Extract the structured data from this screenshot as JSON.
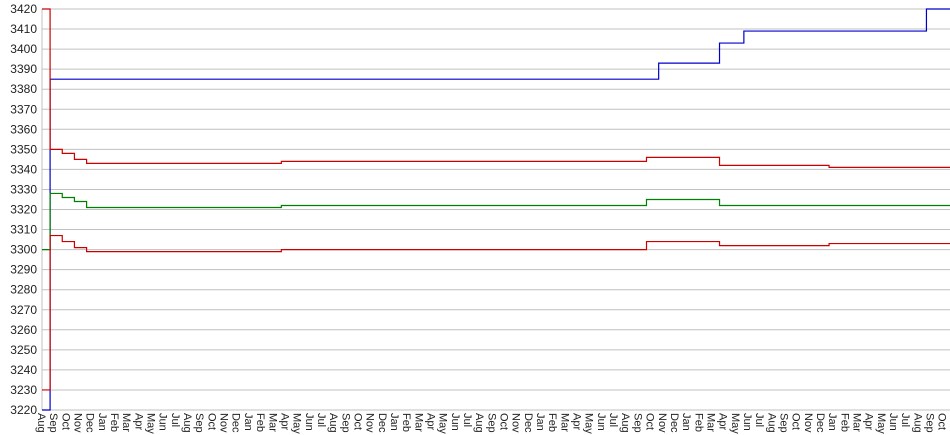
{
  "chart_data": {
    "type": "line",
    "title": "",
    "xlabel": "",
    "ylabel": "",
    "ylim": [
      3220,
      3420
    ],
    "yticks": [
      3220,
      3230,
      3240,
      3250,
      3260,
      3270,
      3280,
      3290,
      3300,
      3310,
      3320,
      3330,
      3340,
      3350,
      3360,
      3370,
      3380,
      3390,
      3400,
      3410,
      3420
    ],
    "grid": "horizontal",
    "legend": "none",
    "categories": [
      "Aug",
      "Sep",
      "Oct",
      "Nov",
      "Dec",
      "Jan",
      "Feb",
      "Mar",
      "Apr",
      "May",
      "Jun",
      "Jul",
      "Aug",
      "Sep",
      "Oct",
      "Nov",
      "Dec",
      "Jan",
      "Feb",
      "Mar",
      "Apr",
      "May",
      "Jun",
      "Jul",
      "Aug",
      "Sep",
      "Oct",
      "Nov",
      "Dec",
      "Jan",
      "Feb",
      "Mar",
      "Apr",
      "May",
      "Jun",
      "Jul",
      "Aug",
      "Sep",
      "Oct",
      "Nov",
      "Dec",
      "Jan",
      "Feb",
      "Mar",
      "Apr",
      "May",
      "Jun",
      "Jul",
      "Aug",
      "Sep",
      "Oct",
      "Nov",
      "Dec",
      "Jan",
      "Feb",
      "Mar",
      "Apr",
      "May",
      "Jun",
      "Jul",
      "Aug",
      "Sep",
      "Oct",
      "Nov",
      "Dec",
      "Jan",
      "Feb",
      "Mar",
      "Apr",
      "May",
      "Jun",
      "Jul",
      "Aug",
      "Sep",
      "Oct"
    ],
    "series": [
      {
        "color": "#0000cc",
        "values": [
          3220,
          3385,
          3385,
          3385,
          3385,
          3385,
          3385,
          3385,
          3385,
          3385,
          3385,
          3385,
          3385,
          3385,
          3385,
          3385,
          3385,
          3385,
          3385,
          3385,
          3385,
          3385,
          3385,
          3385,
          3385,
          3385,
          3385,
          3385,
          3385,
          3385,
          3385,
          3385,
          3385,
          3385,
          3385,
          3385,
          3385,
          3385,
          3385,
          3385,
          3385,
          3385,
          3385,
          3385,
          3385,
          3385,
          3385,
          3385,
          3385,
          3385,
          3385,
          3393,
          3393,
          3393,
          3393,
          3393,
          3403,
          3403,
          3409,
          3409,
          3409,
          3409,
          3409,
          3409,
          3409,
          3409,
          3409,
          3409,
          3409,
          3409,
          3409,
          3409,
          3409,
          3420,
          3420
        ]
      },
      {
        "color": "#cc0000",
        "values": [
          3420,
          3350,
          3348,
          3345,
          3343,
          3343,
          3343,
          3343,
          3343,
          3343,
          3343,
          3343,
          3343,
          3343,
          3343,
          3343,
          3343,
          3343,
          3343,
          3343,
          3344,
          3344,
          3344,
          3344,
          3344,
          3344,
          3344,
          3344,
          3344,
          3344,
          3344,
          3344,
          3344,
          3344,
          3344,
          3344,
          3344,
          3344,
          3344,
          3344,
          3344,
          3344,
          3344,
          3344,
          3344,
          3344,
          3344,
          3344,
          3344,
          3344,
          3346,
          3346,
          3346,
          3346,
          3346,
          3346,
          3342,
          3342,
          3342,
          3342,
          3342,
          3342,
          3342,
          3342,
          3342,
          3341,
          3341,
          3341,
          3341,
          3341,
          3341,
          3341,
          3341,
          3341,
          3341
        ]
      },
      {
        "color": "#008000",
        "values": [
          3300,
          3328,
          3326,
          3324,
          3321,
          3321,
          3321,
          3321,
          3321,
          3321,
          3321,
          3321,
          3321,
          3321,
          3321,
          3321,
          3321,
          3321,
          3321,
          3321,
          3322,
          3322,
          3322,
          3322,
          3322,
          3322,
          3322,
          3322,
          3322,
          3322,
          3322,
          3322,
          3322,
          3322,
          3322,
          3322,
          3322,
          3322,
          3322,
          3322,
          3322,
          3322,
          3322,
          3322,
          3322,
          3322,
          3322,
          3322,
          3322,
          3322,
          3325,
          3325,
          3325,
          3325,
          3325,
          3325,
          3322,
          3322,
          3322,
          3322,
          3322,
          3322,
          3322,
          3322,
          3322,
          3322,
          3322,
          3322,
          3322,
          3322,
          3322,
          3322,
          3322,
          3322,
          3322
        ]
      },
      {
        "color": "#cc0000",
        "values": [
          3230,
          3307,
          3304,
          3301,
          3299,
          3299,
          3299,
          3299,
          3299,
          3299,
          3299,
          3299,
          3299,
          3299,
          3299,
          3299,
          3299,
          3299,
          3299,
          3299,
          3300,
          3300,
          3300,
          3300,
          3300,
          3300,
          3300,
          3300,
          3300,
          3300,
          3300,
          3300,
          3300,
          3300,
          3300,
          3300,
          3300,
          3300,
          3300,
          3300,
          3300,
          3300,
          3300,
          3300,
          3300,
          3300,
          3300,
          3300,
          3300,
          3300,
          3304,
          3304,
          3304,
          3304,
          3304,
          3304,
          3302,
          3302,
          3302,
          3302,
          3302,
          3302,
          3302,
          3302,
          3302,
          3303,
          3303,
          3303,
          3303,
          3303,
          3303,
          3303,
          3303,
          3303,
          3303
        ]
      }
    ]
  }
}
